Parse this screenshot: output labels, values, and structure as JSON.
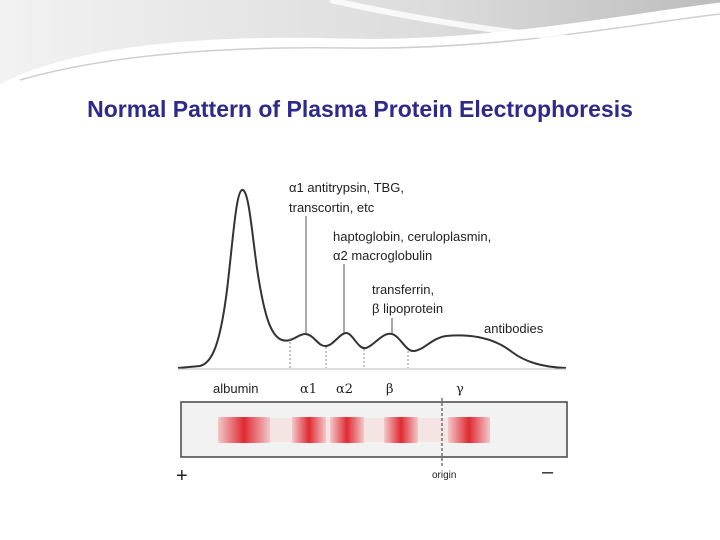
{
  "slide": {
    "title": "Normal Pattern of Plasma Protein Electrophoresis",
    "title_color": "#2e2a8a"
  },
  "annotations": {
    "alpha1_proteins": {
      "line1": "α1 antitrypsin, TBG,",
      "line2": "transcortin, etc"
    },
    "alpha2_proteins": {
      "line1": "haptoglobin, ceruloplasmin,",
      "line2": "α2 macroglobulin"
    },
    "beta_proteins": {
      "line1": "transferrin,",
      "line2": "β lipoprotein"
    },
    "gamma_proteins": "antibodies"
  },
  "fractions": [
    "albumin",
    "α1",
    "α2",
    "β",
    "γ"
  ],
  "gel": {
    "anode": "+",
    "cathode": "–",
    "origin_label": "origin",
    "band_color": "#e02a32"
  }
}
